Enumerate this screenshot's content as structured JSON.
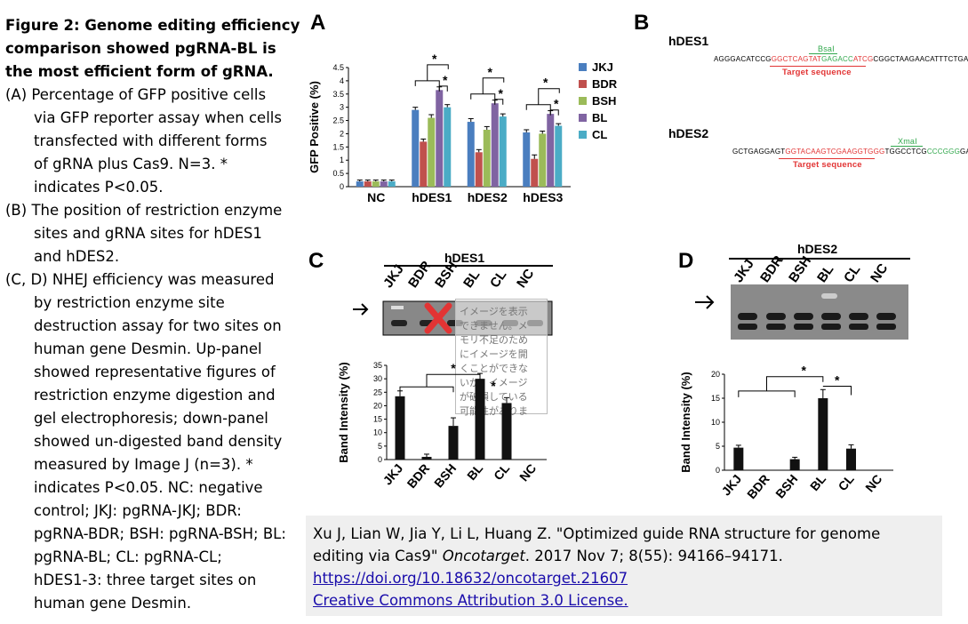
{
  "caption": {
    "title_lines": [
      "Figure 2: Genome editing efficiency",
      "comparison showed pgRNA-BL is",
      "the most efficient form of gRNA."
    ],
    "items": [
      {
        "label": "(A)",
        "text_lines": [
          "Percentage of GFP positive cells",
          "via GFP reporter assay when cells",
          "transfected with different forms",
          "of gRNA plus Cas9. N=3. *",
          "indicates P<0.05."
        ]
      },
      {
        "label": "(B)",
        "text_lines": [
          "The position of restriction enzyme",
          "sites and gRNA sites for hDES1",
          "and hDES2."
        ]
      },
      {
        "label": "(C, D)",
        "text_lines": [
          "NHEJ efficiency was measured",
          "by restriction enzyme site",
          "destruction assay for two sites on",
          "human gene Desmin. Up-panel",
          "showed representative figures of",
          "restriction enzyme digestion and",
          "gel electrophoresis; down-panel",
          "showed un-digested band density",
          "measured by Image J (n=3). *",
          "indicates P<0.05. NC: negative",
          "control; JKJ: pgRNA-JKJ; BDR:",
          "pgRNA-BDR; BSH: pgRNA-BSH; BL:",
          "pgRNA-BL; CL: pgRNA-CL;",
          "hDES1-3: three target sites on",
          "human gene Desmin."
        ]
      }
    ]
  },
  "panels": {
    "a": "A",
    "b": "B",
    "c": "C",
    "d": "D"
  },
  "panel_b": {
    "hdes1": {
      "name": "hDES1",
      "enzyme": "BsaI",
      "seq_pre": "AGGGACATCCG",
      "seq_red1": "GGCTCAGTAT",
      "seq_green": "GAGACC",
      "seq_red2": "ATCG",
      "seq_post": "CGGCTAAGAACATTTCTGA",
      "target_label": "Target sequence"
    },
    "hdes2": {
      "name": "hDES2",
      "enzyme": "XmaI",
      "seq_pre": "GCTGAGGAGT",
      "seq_red": "GGTACAAGTCGAAGGTGGG",
      "seq_mid": "TGGCCTCG",
      "seq_green": "CCCGGG",
      "seq_post": "GACTGGC",
      "target_label": "Target sequence"
    }
  },
  "panel_c": {
    "gene": "hDES1",
    "lanes": [
      "JKJ",
      "BDR",
      "BSH",
      "BL",
      "CL",
      "NC"
    ],
    "overlay_text": [
      "イメージを表示",
      "できません。メ",
      "モリ不足のため",
      "にイメージを開",
      "くことができな",
      "いか、イメージ",
      "が破損している",
      "可能性がありま"
    ]
  },
  "panel_d": {
    "gene": "hDES2",
    "lanes": [
      "JKJ",
      "BDR",
      "BSH",
      "BL",
      "CL",
      "NC"
    ]
  },
  "citation": {
    "authors": "Xu J, Lian W, Jia Y, Li L, Huang Z. \"Optimized guide RNA structure for genome",
    "title_cont": "editing via Cas9\"",
    "journal": "Oncotarget",
    "details": ". 2017 Nov 7; 8(55): 94166–94171.",
    "doi": "https://doi.org/10.18632/oncotarget.21607",
    "license": "Creative Commons Attribution 3.0 License."
  },
  "chart_data": [
    {
      "type": "bar",
      "panel": "A",
      "ylabel": "GFP Positive (%)",
      "xlabel": "",
      "ylim": [
        0,
        4.5
      ],
      "yticks": [
        "0",
        "0.5",
        "1",
        "1.5",
        "2",
        "2.5",
        "3",
        "3.5",
        "4",
        "4.5"
      ],
      "categories": [
        "NC",
        "hDES1",
        "hDES2",
        "hDES3"
      ],
      "series": [
        {
          "name": "JKJ",
          "color": "#4a7ebf",
          "values": [
            0.2,
            2.9,
            2.45,
            2.05
          ],
          "errors": [
            0.05,
            0.1,
            0.12,
            0.1
          ]
        },
        {
          "name": "BDR",
          "color": "#c0504d",
          "values": [
            0.2,
            1.7,
            1.3,
            1.05
          ],
          "errors": [
            0.05,
            0.1,
            0.1,
            0.15
          ]
        },
        {
          "name": "BSH",
          "color": "#9bbb59",
          "values": [
            0.2,
            2.6,
            2.15,
            2.0
          ],
          "errors": [
            0.05,
            0.12,
            0.12,
            0.1
          ]
        },
        {
          "name": "BL",
          "color": "#8064a2",
          "values": [
            0.2,
            3.65,
            3.15,
            2.75
          ],
          "errors": [
            0.05,
            0.12,
            0.12,
            0.12
          ]
        },
        {
          "name": "CL",
          "color": "#4bacc6",
          "values": [
            0.2,
            3.0,
            2.65,
            2.3
          ],
          "errors": [
            0.05,
            0.1,
            0.1,
            0.08
          ]
        }
      ],
      "annotations": [
        "*"
      ]
    },
    {
      "type": "bar",
      "panel": "C",
      "ylabel": "Band Intensity (%)",
      "ylim": [
        0,
        35
      ],
      "yticks": [
        "0",
        "5",
        "10",
        "15",
        "20",
        "25",
        "30",
        "35"
      ],
      "categories": [
        "JKJ",
        "BDR",
        "BSH",
        "BL",
        "CL",
        "NC"
      ],
      "values": [
        23.5,
        1,
        12.5,
        30,
        21,
        0
      ],
      "errors": [
        2,
        1,
        3,
        2,
        2,
        0
      ],
      "annotations": [
        "*",
        "*"
      ]
    },
    {
      "type": "bar",
      "panel": "D",
      "ylabel": "Band Intensity (%)",
      "ylim": [
        0,
        20
      ],
      "yticks": [
        "0",
        "5",
        "10",
        "15",
        "20"
      ],
      "categories": [
        "JKJ",
        "BDR",
        "BSH",
        "BL",
        "CL",
        "NC"
      ],
      "values": [
        4.7,
        0,
        2.3,
        15,
        4.5,
        0
      ],
      "errors": [
        0.5,
        0,
        0.4,
        1.8,
        0.8,
        0
      ],
      "annotations": [
        "*",
        "*"
      ]
    }
  ]
}
